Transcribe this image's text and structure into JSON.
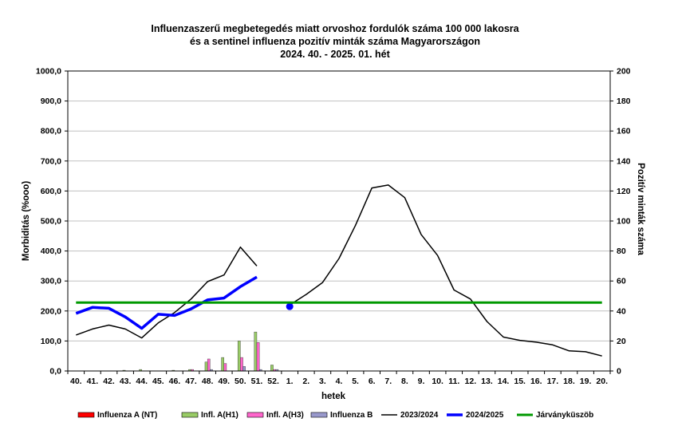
{
  "chart_data": {
    "type": "line",
    "title_lines": [
      "Influenzaszerű megbetegedés miatt orvoshoz fordulók száma 100 000 lakosra",
      "és a sentinel influenza pozitív minták száma Magyarországon",
      "2024. 40. - 2025. 01. hét"
    ],
    "xlabel": "hetek",
    "ylabel_left": "Morbiditás (%ooo)",
    "ylabel_right": "Pozitív minták száma",
    "categories": [
      "40.",
      "41.",
      "42.",
      "43.",
      "44.",
      "45.",
      "46.",
      "47.",
      "48.",
      "49.",
      "50.",
      "51.",
      "52.",
      "1.",
      "2.",
      "3.",
      "4.",
      "5.",
      "6.",
      "7.",
      "8.",
      "9.",
      "10.",
      "11.",
      "12.",
      "13.",
      "14.",
      "15.",
      "16.",
      "17.",
      "18.",
      "19.",
      "20."
    ],
    "ylim_left": [
      0,
      1000
    ],
    "yticks_left": [
      "0,0",
      "100,0",
      "200,0",
      "300,0",
      "400,0",
      "500,0",
      "600,0",
      "700,0",
      "800,0",
      "900,0",
      "1000,0"
    ],
    "ylim_right": [
      0,
      200
    ],
    "yticks_right": [
      "0",
      "20",
      "40",
      "60",
      "80",
      "100",
      "120",
      "140",
      "160",
      "180",
      "200"
    ],
    "grid": true,
    "lines": [
      {
        "name": "2023/2024",
        "color": "#000000",
        "width": 1.5,
        "axis": "left",
        "segments": [
          {
            "start": 0,
            "values": [
              120,
              140,
              153,
              140,
              110,
              160,
              195,
              240,
              298,
              320,
              413,
              350
            ]
          },
          {
            "start": 13,
            "values": [
              220,
              255,
              295,
              375,
              485,
              610,
              620,
              578,
              455,
              385,
              270,
              240,
              165,
              113,
              102,
              96,
              87,
              67,
              64,
              50
            ]
          }
        ]
      },
      {
        "name": "2024/2025",
        "color": "#0000ff",
        "width": 3.5,
        "axis": "left",
        "segments": [
          {
            "start": 0,
            "values": [
              192,
              212,
              209,
              180,
              142,
              189,
              185,
              207,
              237,
              243,
              281,
              313
            ]
          },
          {
            "start": 13,
            "values": [
              215
            ]
          }
        ]
      },
      {
        "name": "Járványküszöb",
        "color": "#009900",
        "width": 3,
        "axis": "left",
        "constant": 228
      }
    ],
    "bar_series": [
      {
        "name": "Influenza A (NT)",
        "color": "#ff0000",
        "values": [
          0,
          0,
          0,
          0,
          0,
          0,
          0,
          0,
          0,
          0,
          0,
          0,
          0
        ]
      },
      {
        "name": "Infl. A(H1)",
        "color": "#99cc66",
        "values": [
          0,
          0,
          0,
          0.5,
          1,
          0,
          0.5,
          1,
          6,
          9,
          20,
          26,
          4
        ]
      },
      {
        "name": "Infl. A(H3)",
        "color": "#ff66cc",
        "values": [
          0,
          0,
          0,
          0,
          0,
          0,
          0,
          1,
          8,
          5,
          9,
          19,
          1
        ]
      },
      {
        "name": "Influenza B",
        "color": "#9999cc",
        "values": [
          0,
          0,
          0,
          0,
          0,
          0,
          0,
          0,
          1,
          0,
          3,
          1,
          1
        ]
      }
    ],
    "legend_position": "bottom",
    "legend": [
      {
        "label": "Influenza A (NT)",
        "kind": "box",
        "color": "#ff0000"
      },
      {
        "label": "Infl. A(H1)",
        "kind": "box",
        "color": "#99cc66"
      },
      {
        "label": "Infl. A(H3)",
        "kind": "box",
        "color": "#ff66cc"
      },
      {
        "label": "Influenza B",
        "kind": "box",
        "color": "#9999cc"
      },
      {
        "label": "2023/2024",
        "kind": "line",
        "color": "#000000",
        "width": 1.5
      },
      {
        "label": "2024/2025",
        "kind": "line",
        "color": "#0000ff",
        "width": 3.5
      },
      {
        "label": "Járványküszöb",
        "kind": "line",
        "color": "#009900",
        "width": 3
      }
    ]
  }
}
